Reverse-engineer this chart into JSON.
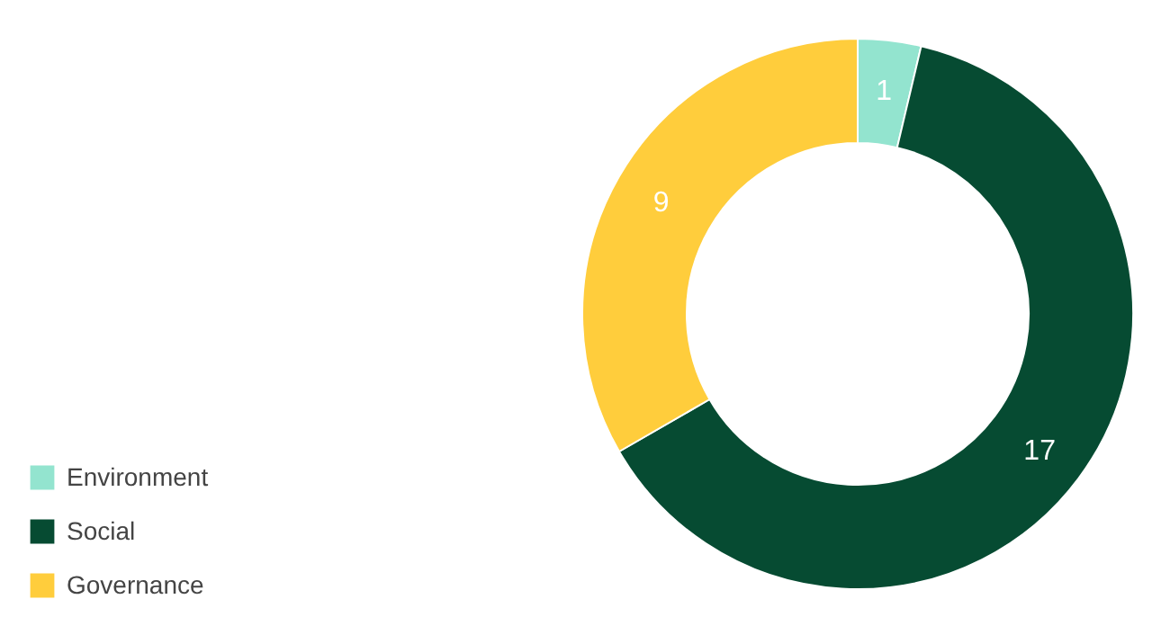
{
  "chart_data": {
    "type": "donut",
    "categories": [
      "Environment",
      "Social",
      "Governance"
    ],
    "values": [
      1,
      17,
      9
    ],
    "colors": [
      "#93e4cf",
      "#064b32",
      "#ffcd3c"
    ],
    "data_labels": true,
    "legend": "bottom left"
  }
}
